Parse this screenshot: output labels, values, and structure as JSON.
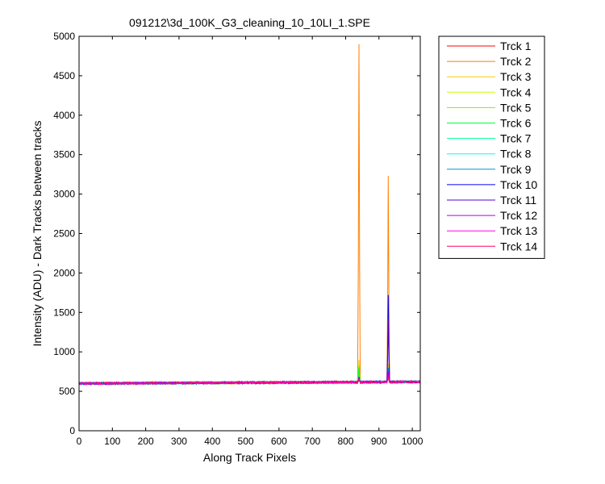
{
  "chart_data": {
    "type": "line",
    "title": "091212\\3d_100K_G3_cleaning_10_10LI_1.SPE",
    "xlabel": "Along Track Pixels",
    "ylabel": "Intensity (ADU) - Dark Tracks between tracks",
    "xlim": [
      0,
      1024
    ],
    "ylim": [
      0,
      5000
    ],
    "xticks": [
      0,
      100,
      200,
      300,
      400,
      500,
      600,
      700,
      800,
      900,
      1000
    ],
    "yticks": [
      0,
      500,
      1000,
      1500,
      2000,
      2500,
      3000,
      3500,
      4000,
      4500,
      5000
    ],
    "grid": false,
    "legend_position": "outside-right",
    "baseline": 610,
    "series": [
      {
        "name": "Trck 1",
        "color": "#ff0000",
        "peaks": [
          {
            "x": 840,
            "y": 700
          },
          {
            "x": 928,
            "y": 800
          }
        ]
      },
      {
        "name": "Trck 2",
        "color": "#ff7f00",
        "peaks": [
          {
            "x": 840,
            "y": 4900
          },
          {
            "x": 928,
            "y": 3230
          }
        ]
      },
      {
        "name": "Trck 3",
        "color": "#ffcc00",
        "peaks": [
          {
            "x": 840,
            "y": 900
          },
          {
            "x": 928,
            "y": 850
          }
        ]
      },
      {
        "name": "Trck 4",
        "color": "#c8ff00",
        "peaks": [
          {
            "x": 840,
            "y": 850
          },
          {
            "x": 928,
            "y": 700
          }
        ]
      },
      {
        "name": "Trck 5",
        "color": "#66ff00",
        "peaks": [
          {
            "x": 840,
            "y": 830
          },
          {
            "x": 928,
            "y": 700
          }
        ]
      },
      {
        "name": "Trck 6",
        "color": "#00ff33",
        "peaks": [
          {
            "x": 840,
            "y": 800
          },
          {
            "x": 928,
            "y": 680
          }
        ]
      },
      {
        "name": "Trck 7",
        "color": "#00ff99",
        "peaks": [
          {
            "x": 840,
            "y": 700
          },
          {
            "x": 928,
            "y": 680
          }
        ]
      },
      {
        "name": "Trck 8",
        "color": "#00ffee",
        "peaks": [
          {
            "x": 840,
            "y": 680
          },
          {
            "x": 928,
            "y": 700
          }
        ]
      },
      {
        "name": "Trck 9",
        "color": "#0099cc",
        "peaks": [
          {
            "x": 840,
            "y": 680
          },
          {
            "x": 928,
            "y": 800
          }
        ]
      },
      {
        "name": "Trck 10",
        "color": "#0000ff",
        "peaks": [
          {
            "x": 840,
            "y": 680
          },
          {
            "x": 928,
            "y": 1720
          }
        ]
      },
      {
        "name": "Trck 11",
        "color": "#5500cc",
        "peaks": [
          {
            "x": 840,
            "y": 680
          },
          {
            "x": 928,
            "y": 1420
          }
        ]
      },
      {
        "name": "Trck 12",
        "color": "#aa00ff",
        "peaks": [
          {
            "x": 840,
            "y": 670
          },
          {
            "x": 928,
            "y": 750
          }
        ]
      },
      {
        "name": "Trck 13",
        "color": "#ff00ee",
        "peaks": [
          {
            "x": 840,
            "y": 660
          },
          {
            "x": 928,
            "y": 700
          }
        ]
      },
      {
        "name": "Trck 14",
        "color": "#ff0066",
        "peaks": [
          {
            "x": 840,
            "y": 660
          },
          {
            "x": 928,
            "y": 690
          }
        ]
      }
    ]
  }
}
